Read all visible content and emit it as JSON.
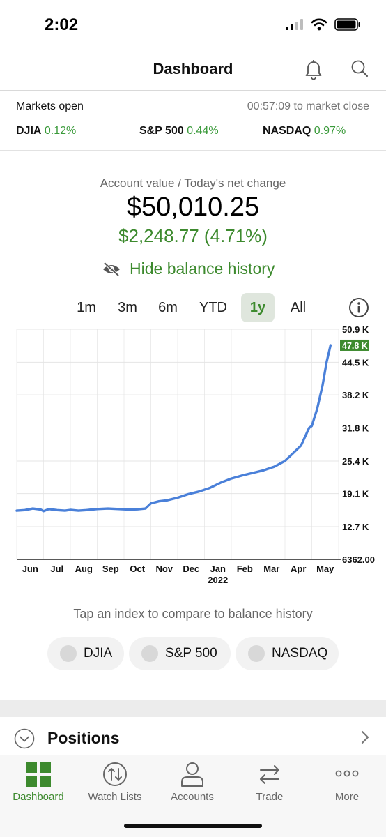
{
  "status_bar": {
    "time": "2:02"
  },
  "header": {
    "title": "Dashboard"
  },
  "markets": {
    "status": "Markets open",
    "countdown": "00:57:09 to market close",
    "indices": [
      {
        "name": "DJIA",
        "change": "0.12%"
      },
      {
        "name": "S&P 500",
        "change": "0.44%"
      },
      {
        "name": "NASDAQ",
        "change": "0.97%"
      }
    ]
  },
  "account": {
    "label": "Account value / Today's net change",
    "value": "$50,010.25",
    "change": "$2,248.77 (4.71%)",
    "hide_label": "Hide balance history"
  },
  "ranges": [
    {
      "label": "1m",
      "active": false
    },
    {
      "label": "3m",
      "active": false
    },
    {
      "label": "6m",
      "active": false
    },
    {
      "label": "YTD",
      "active": false
    },
    {
      "label": "1y",
      "active": true
    },
    {
      "label": "All",
      "active": false
    }
  ],
  "chart_data": {
    "type": "line",
    "y_ticks": [
      {
        "label": "50.9 K",
        "value": 50900
      },
      {
        "label": "44.5 K",
        "value": 44500
      },
      {
        "label": "38.2 K",
        "value": 38200
      },
      {
        "label": "31.8 K",
        "value": 31800
      },
      {
        "label": "25.4 K",
        "value": 25400
      },
      {
        "label": "19.1 K",
        "value": 19100
      },
      {
        "label": "12.7 K",
        "value": 12700
      },
      {
        "label": "6362.00",
        "value": 6362
      }
    ],
    "current_label": "47.8 K",
    "current_value": 47800,
    "ylim": [
      6362,
      50900
    ],
    "x_ticks": [
      {
        "label": "Jun",
        "pos": 0.5
      },
      {
        "label": "Jul",
        "pos": 1.5
      },
      {
        "label": "Aug",
        "pos": 2.5
      },
      {
        "label": "Sep",
        "pos": 3.5
      },
      {
        "label": "Oct",
        "pos": 4.5
      },
      {
        "label": "Nov",
        "pos": 5.5
      },
      {
        "label": "Dec",
        "pos": 6.5
      },
      {
        "label": "Jan",
        "pos": 7.5
      },
      {
        "label": "Feb",
        "pos": 8.5
      },
      {
        "label": "Mar",
        "pos": 9.5
      },
      {
        "label": "Apr",
        "pos": 10.5
      },
      {
        "label": "May",
        "pos": 11.5
      }
    ],
    "x_year_label": "2022",
    "x_year_pos": 7.5,
    "xlim": [
      0,
      12
    ],
    "series": [
      {
        "color": "#4a80d9",
        "x": [
          0,
          0.3,
          0.6,
          0.9,
          1.0,
          1.2,
          1.5,
          1.8,
          2.0,
          2.3,
          2.6,
          3.0,
          3.4,
          3.8,
          4.2,
          4.5,
          4.8,
          5.0,
          5.3,
          5.6,
          6.0,
          6.4,
          6.8,
          7.2,
          7.6,
          8.0,
          8.4,
          8.8,
          9.2,
          9.6,
          10.0,
          10.3,
          10.6,
          10.9,
          11.0,
          11.2,
          11.4,
          11.55,
          11.7
        ],
        "y": [
          15800,
          15900,
          16200,
          16000,
          15700,
          16100,
          15900,
          15800,
          15950,
          15800,
          15900,
          16100,
          16200,
          16100,
          16000,
          16050,
          16200,
          17200,
          17600,
          17800,
          18300,
          19000,
          19500,
          20200,
          21200,
          22000,
          22600,
          23100,
          23600,
          24300,
          25400,
          26900,
          28400,
          31800,
          32200,
          35500,
          40000,
          44500,
          47800
        ]
      }
    ]
  },
  "compare": {
    "label": "Tap an index to compare to balance history",
    "chips": [
      "DJIA",
      "S&P 500",
      "NASDAQ"
    ]
  },
  "positions": {
    "title": "Positions"
  },
  "tabs": [
    {
      "label": "Dashboard",
      "icon": "dashboard-grid-icon",
      "active": true
    },
    {
      "label": "Watch Lists",
      "icon": "watchlist-arrows-icon",
      "active": false
    },
    {
      "label": "Accounts",
      "icon": "person-icon",
      "active": false
    },
    {
      "label": "Trade",
      "icon": "swap-arrows-icon",
      "active": false
    },
    {
      "label": "More",
      "icon": "ellipsis-icon",
      "active": false
    }
  ],
  "colors": {
    "accent_green": "#3d8a2e",
    "positive_green": "#3a9a3a",
    "line_blue": "#4a80d9"
  }
}
